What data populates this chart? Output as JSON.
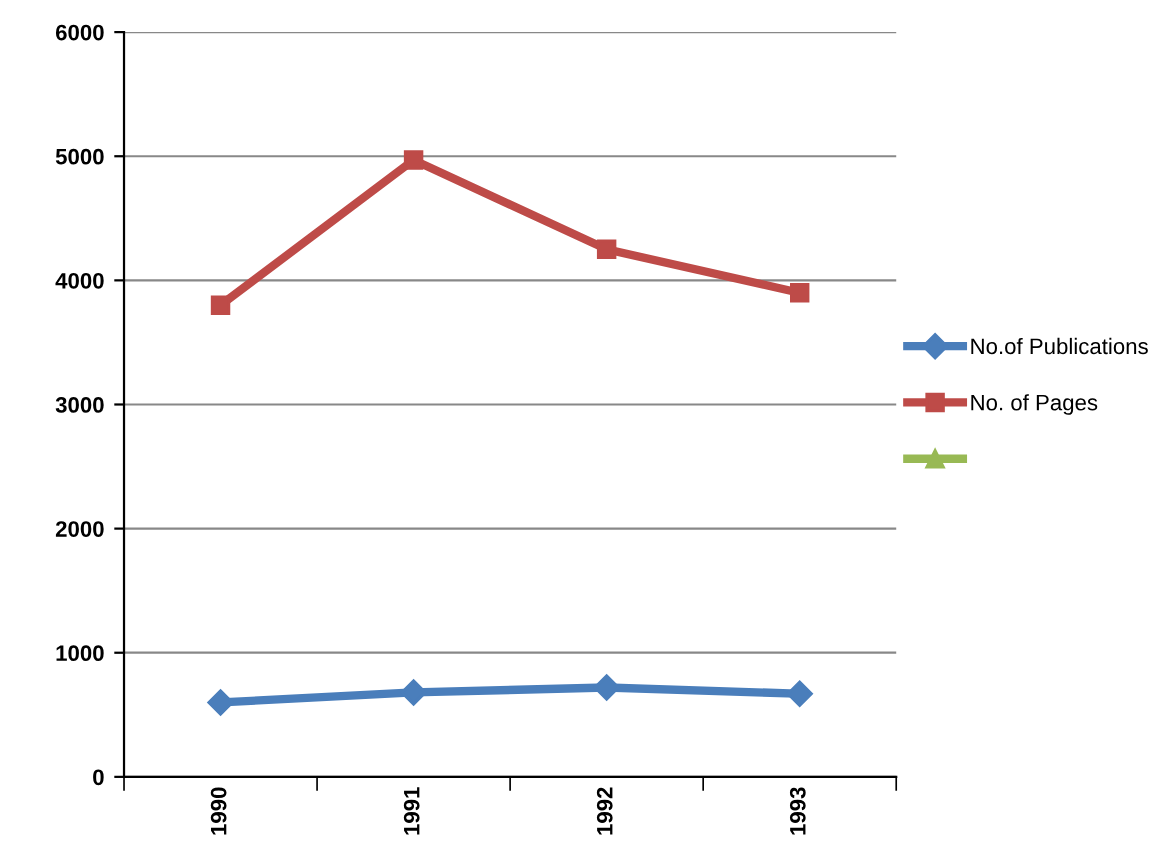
{
  "chart_data": {
    "type": "line",
    "categories": [
      "1990",
      "1991",
      "1992",
      "1993"
    ],
    "series": [
      {
        "name": "No.of Publications",
        "color": "#4a7ebb",
        "values": [
          600,
          680,
          720,
          670
        ],
        "marker": "diamond"
      },
      {
        "name": "No. of Pages",
        "color": "#be4b48",
        "values": [
          3800,
          4970,
          4250,
          3900
        ],
        "marker": "square"
      },
      {
        "color": "#98b954",
        "values": [
          null,
          null,
          null,
          null
        ],
        "marker": "triangle"
      }
    ],
    "ylim": [
      0,
      6000
    ],
    "yticks": [
      0,
      1000,
      2000,
      3000,
      4000,
      5000,
      6000
    ],
    "grid": "y",
    "legend": "right"
  }
}
